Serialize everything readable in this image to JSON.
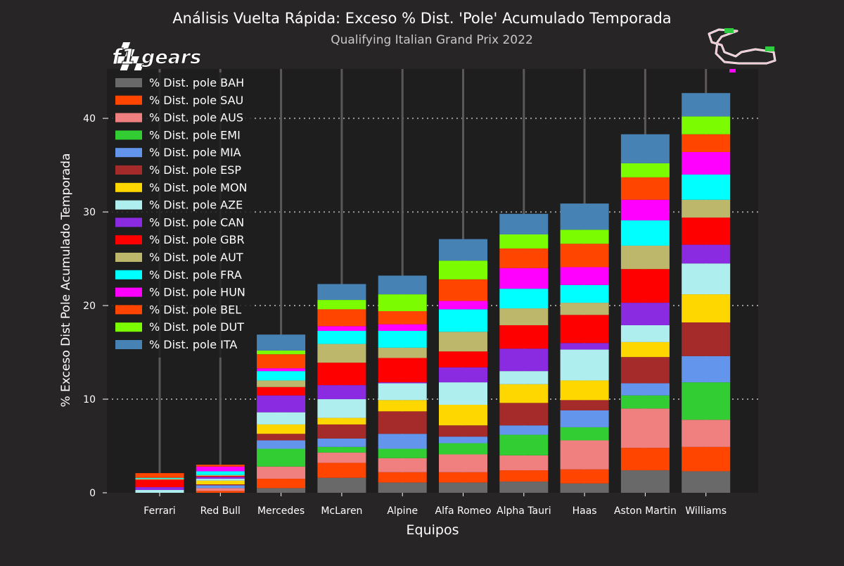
{
  "colors": {
    "background": "#282526",
    "plot_background": "#1e1e1e",
    "text": "#ffffff",
    "subtitle": "#c8c8c8",
    "grid": "#9a9a9a",
    "stem": "#5c5858"
  },
  "logo": {
    "text": "f1 gears"
  },
  "track_map": {
    "icon": "monza-circuit-map-icon"
  },
  "chart_data": {
    "type": "bar",
    "stacked": true,
    "title": "Análisis Vuelta Rápida: Exceso % Dist. 'Pole' Acumulado Temporada",
    "subtitle": "Qualifying Italian Grand Prix 2022",
    "xlabel": "Equipos",
    "ylabel": "% Exceso Dist Pole Acumulado Temporada",
    "ylim": [
      0,
      45
    ],
    "yticks": [
      0,
      10,
      20,
      30,
      40
    ],
    "grid": "horizontal dotted",
    "legend_position": "top-left",
    "categories": [
      "Ferrari",
      "Red Bull",
      "Mercedes",
      "McLaren",
      "Alpine",
      "Alfa Romeo",
      "Alpha Tauri",
      "Haas",
      "Aston Martin",
      "Williams"
    ],
    "series": [
      {
        "name": "% Dist. pole BAH",
        "color": "#696969",
        "values": [
          0,
          0,
          0.5,
          1.6,
          1.1,
          1.1,
          1.2,
          1.0,
          2.4,
          2.3
        ]
      },
      {
        "name": "% Dist. pole SAU",
        "color": "#ff4500",
        "values": [
          0,
          0.2,
          1.0,
          1.6,
          1.1,
          1.1,
          1.2,
          1.5,
          2.4,
          2.6
        ]
      },
      {
        "name": "% Dist. pole AUS",
        "color": "#f08080",
        "values": [
          0,
          0.3,
          1.3,
          1.1,
          1.5,
          1.9,
          1.6,
          3.1,
          4.2,
          2.9
        ]
      },
      {
        "name": "% Dist. pole EMI",
        "color": "#32cd32",
        "values": [
          0,
          0,
          1.9,
          0.6,
          1.0,
          1.2,
          2.2,
          1.4,
          1.4,
          4.0
        ]
      },
      {
        "name": "% Dist. pole MIA",
        "color": "#6495ed",
        "values": [
          0,
          0.3,
          0.9,
          0.9,
          1.6,
          0.7,
          1.0,
          1.8,
          1.3,
          2.8
        ]
      },
      {
        "name": "% Dist. pole ESP",
        "color": "#a52a2a",
        "values": [
          0,
          0.1,
          0.7,
          1.5,
          2.4,
          1.2,
          2.4,
          1.1,
          2.8,
          3.6
        ]
      },
      {
        "name": "% Dist. pole MON",
        "color": "#ffd700",
        "values": [
          0,
          0.4,
          1.0,
          0.7,
          1.2,
          2.2,
          2.0,
          2.1,
          1.6,
          3.0
        ]
      },
      {
        "name": "% Dist. pole AZE",
        "color": "#afeeee",
        "values": [
          0.3,
          0.2,
          1.3,
          2.0,
          1.8,
          2.4,
          1.4,
          3.3,
          1.8,
          3.3
        ]
      },
      {
        "name": "% Dist. pole CAN",
        "color": "#8a2be2",
        "values": [
          0.3,
          0.2,
          1.8,
          1.5,
          0.1,
          1.6,
          2.4,
          0.7,
          2.4,
          2.0
        ]
      },
      {
        "name": "% Dist. pole GBR",
        "color": "#ff0000",
        "values": [
          0.8,
          0.1,
          0.9,
          2.4,
          2.6,
          1.7,
          2.5,
          3.0,
          3.6,
          2.9
        ]
      },
      {
        "name": "% Dist. pole AUT",
        "color": "#bdb76b",
        "values": [
          0.1,
          0.1,
          0.7,
          2.0,
          1.1,
          2.1,
          1.8,
          1.3,
          2.5,
          1.9
        ]
      },
      {
        "name": "% Dist. pole FRA",
        "color": "#00ffff",
        "values": [
          0.1,
          0.4,
          1.0,
          1.4,
          1.8,
          2.4,
          2.1,
          1.9,
          2.7,
          2.7
        ]
      },
      {
        "name": "% Dist. pole HUN",
        "color": "#ff00ff",
        "values": [
          0,
          0.5,
          0.3,
          0.5,
          0.7,
          0.9,
          2.2,
          1.9,
          2.2,
          2.4
        ]
      },
      {
        "name": "% Dist. pole BEL",
        "color": "#ff4500",
        "values": [
          0.5,
          0.2,
          1.5,
          1.8,
          1.4,
          2.3,
          2.1,
          2.5,
          2.4,
          1.9
        ]
      },
      {
        "name": "% Dist. pole DUT",
        "color": "#7cfc00",
        "values": [
          0,
          0,
          0.4,
          1.0,
          1.8,
          2.0,
          1.5,
          1.5,
          1.5,
          1.9
        ]
      },
      {
        "name": "% Dist. pole ITA",
        "color": "#4682b4",
        "values": [
          0,
          0,
          1.7,
          1.7,
          2.0,
          2.3,
          2.2,
          2.8,
          3.1,
          2.5
        ]
      }
    ]
  }
}
